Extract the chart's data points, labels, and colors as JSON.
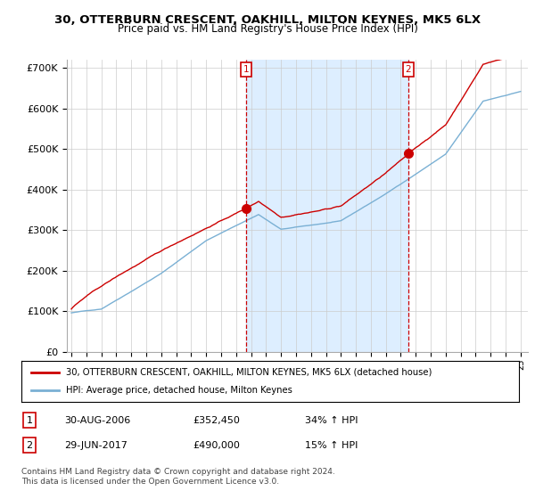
{
  "title": "30, OTTERBURN CRESCENT, OAKHILL, MILTON KEYNES, MK5 6LX",
  "subtitle": "Price paid vs. HM Land Registry's House Price Index (HPI)",
  "ylabel_ticks": [
    "£0",
    "£100K",
    "£200K",
    "£300K",
    "£400K",
    "£500K",
    "£600K",
    "£700K"
  ],
  "ytick_vals": [
    0,
    100000,
    200000,
    300000,
    400000,
    500000,
    600000,
    700000
  ],
  "ylim": [
    0,
    720000
  ],
  "xlim_start": 1994.7,
  "xlim_end": 2025.5,
  "sale1_year": 2006.667,
  "sale1_price": 352450,
  "sale2_year": 2017.5,
  "sale2_price": 490000,
  "sale1_label": "1",
  "sale2_label": "2",
  "legend_line1": "30, OTTERBURN CRESCENT, OAKHILL, MILTON KEYNES, MK5 6LX (detached house)",
  "legend_line2": "HPI: Average price, detached house, Milton Keynes",
  "table_row1_num": "1",
  "table_row1_date": "30-AUG-2006",
  "table_row1_price": "£352,450",
  "table_row1_hpi": "34% ↑ HPI",
  "table_row2_num": "2",
  "table_row2_date": "29-JUN-2017",
  "table_row2_price": "£490,000",
  "table_row2_hpi": "15% ↑ HPI",
  "footer": "Contains HM Land Registry data © Crown copyright and database right 2024.\nThis data is licensed under the Open Government Licence v3.0.",
  "line_color_red": "#cc0000",
  "line_color_blue": "#7ab0d4",
  "shade_color": "#ddeeff",
  "background_color": "#ffffff",
  "grid_color": "#cccccc"
}
